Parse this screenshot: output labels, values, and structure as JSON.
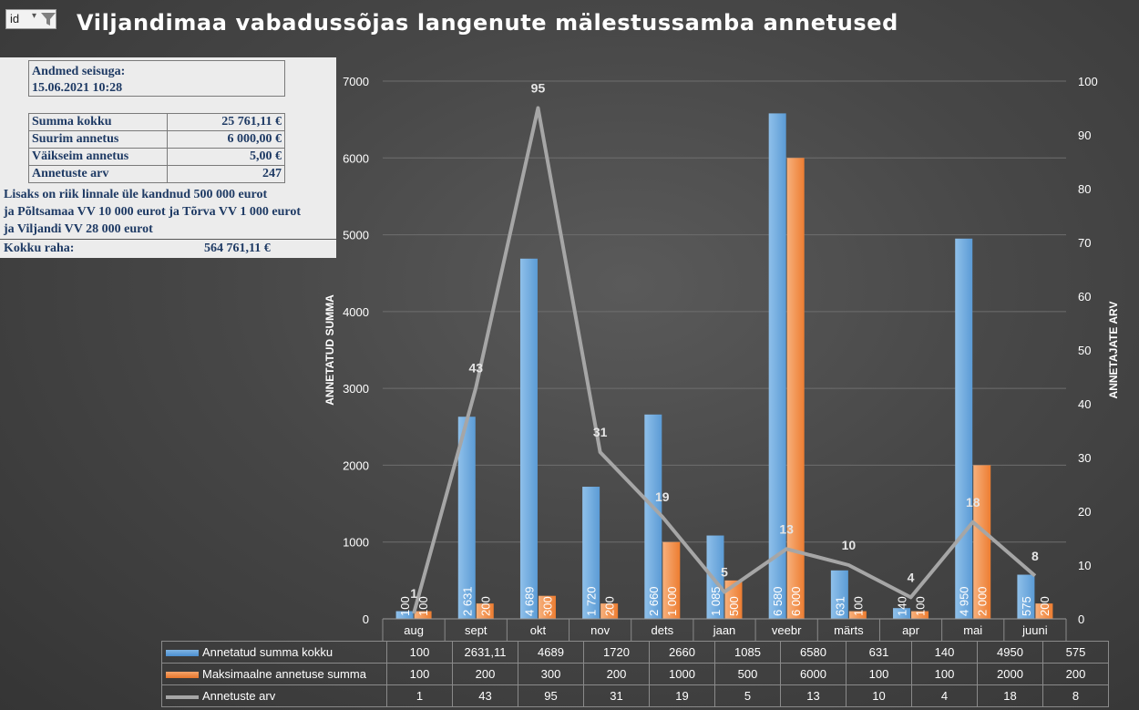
{
  "title": "Viljandimaa vabadussõjas langenute mälestussamba annetused",
  "filter": {
    "label": "id",
    "dropdown": "▾"
  },
  "info": {
    "as_of_label": "Andmed seisuga:",
    "as_of_value": "15.06.2021 10:28",
    "summary": [
      {
        "label": "Summa kokku",
        "value": "25 761,11 €"
      },
      {
        "label": "Suurim annetus",
        "value": "6 000,00 €"
      },
      {
        "label": "Väikseim annetus",
        "value": "5,00 €"
      },
      {
        "label": "Annetuste arv",
        "value": "247"
      }
    ],
    "notes": [
      "Lisaks on riik linnale üle kandnud 500 000 eurot",
      "ja Põltsamaa VV 10 000 eurot ja Tõrva VV 1 000 eurot",
      "ja Viljandi VV 28 000 eurot"
    ],
    "total_label": "Kokku raha:",
    "total_value": "564 761,11 €"
  },
  "colors": {
    "bar_blue": "#5b9bd5",
    "bar_orange": "#ed7d31",
    "line_gray": "#a6a6a6",
    "text": "#ffffff"
  },
  "chart_data": {
    "type": "bar",
    "categories": [
      "aug",
      "sept",
      "okt",
      "nov",
      "dets",
      "jaan",
      "veebr",
      "märts",
      "apr",
      "mai",
      "juuni"
    ],
    "series": [
      {
        "name": "Annetatud summa kokku",
        "type": "bar",
        "axis": "left",
        "values": [
          100,
          2631.11,
          4689,
          1720,
          2660,
          1085,
          6580,
          631,
          140,
          4950,
          575
        ],
        "labels": [
          "100",
          "2 631",
          "4 689",
          "1 720",
          "2 660",
          "1 085",
          "6 580",
          "631",
          "140",
          "4 950",
          "575"
        ],
        "table_values": [
          "100",
          "2631,11",
          "4689",
          "1720",
          "2660",
          "1085",
          "6580",
          "631",
          "140",
          "4950",
          "575"
        ]
      },
      {
        "name": "Maksimaalne annetuse summa",
        "type": "bar",
        "axis": "left",
        "values": [
          100,
          200,
          300,
          200,
          1000,
          500,
          6000,
          100,
          100,
          2000,
          200
        ],
        "labels": [
          "100",
          "200",
          "300",
          "200",
          "1 000",
          "500",
          "6 000",
          "100",
          "100",
          "2 000",
          "200"
        ],
        "table_values": [
          "100",
          "200",
          "300",
          "200",
          "1000",
          "500",
          "6000",
          "100",
          "100",
          "2000",
          "200"
        ]
      },
      {
        "name": "Annetuste arv",
        "type": "line",
        "axis": "right",
        "values": [
          1,
          43,
          95,
          31,
          19,
          5,
          13,
          10,
          4,
          18,
          8
        ],
        "labels": [
          "1",
          "43",
          "95",
          "31",
          "19",
          "5",
          "13",
          "10",
          "4",
          "18",
          "8"
        ],
        "table_values": [
          "1",
          "43",
          "95",
          "31",
          "19",
          "5",
          "13",
          "10",
          "4",
          "18",
          "8"
        ]
      }
    ],
    "ylabel": "ANNETATUD SUMMA",
    "y2label": "ANNETAJATE ARV",
    "ylim": [
      0,
      7000
    ],
    "y2lim": [
      0,
      100
    ],
    "yticks": [
      "0",
      "1000",
      "2000",
      "3000",
      "4000",
      "5000",
      "6000",
      "7000"
    ],
    "y2ticks": [
      "0",
      "10",
      "20",
      "30",
      "40",
      "50",
      "60",
      "70",
      "80",
      "90",
      "100"
    ],
    "grid": true,
    "legend": "data table below chart"
  }
}
